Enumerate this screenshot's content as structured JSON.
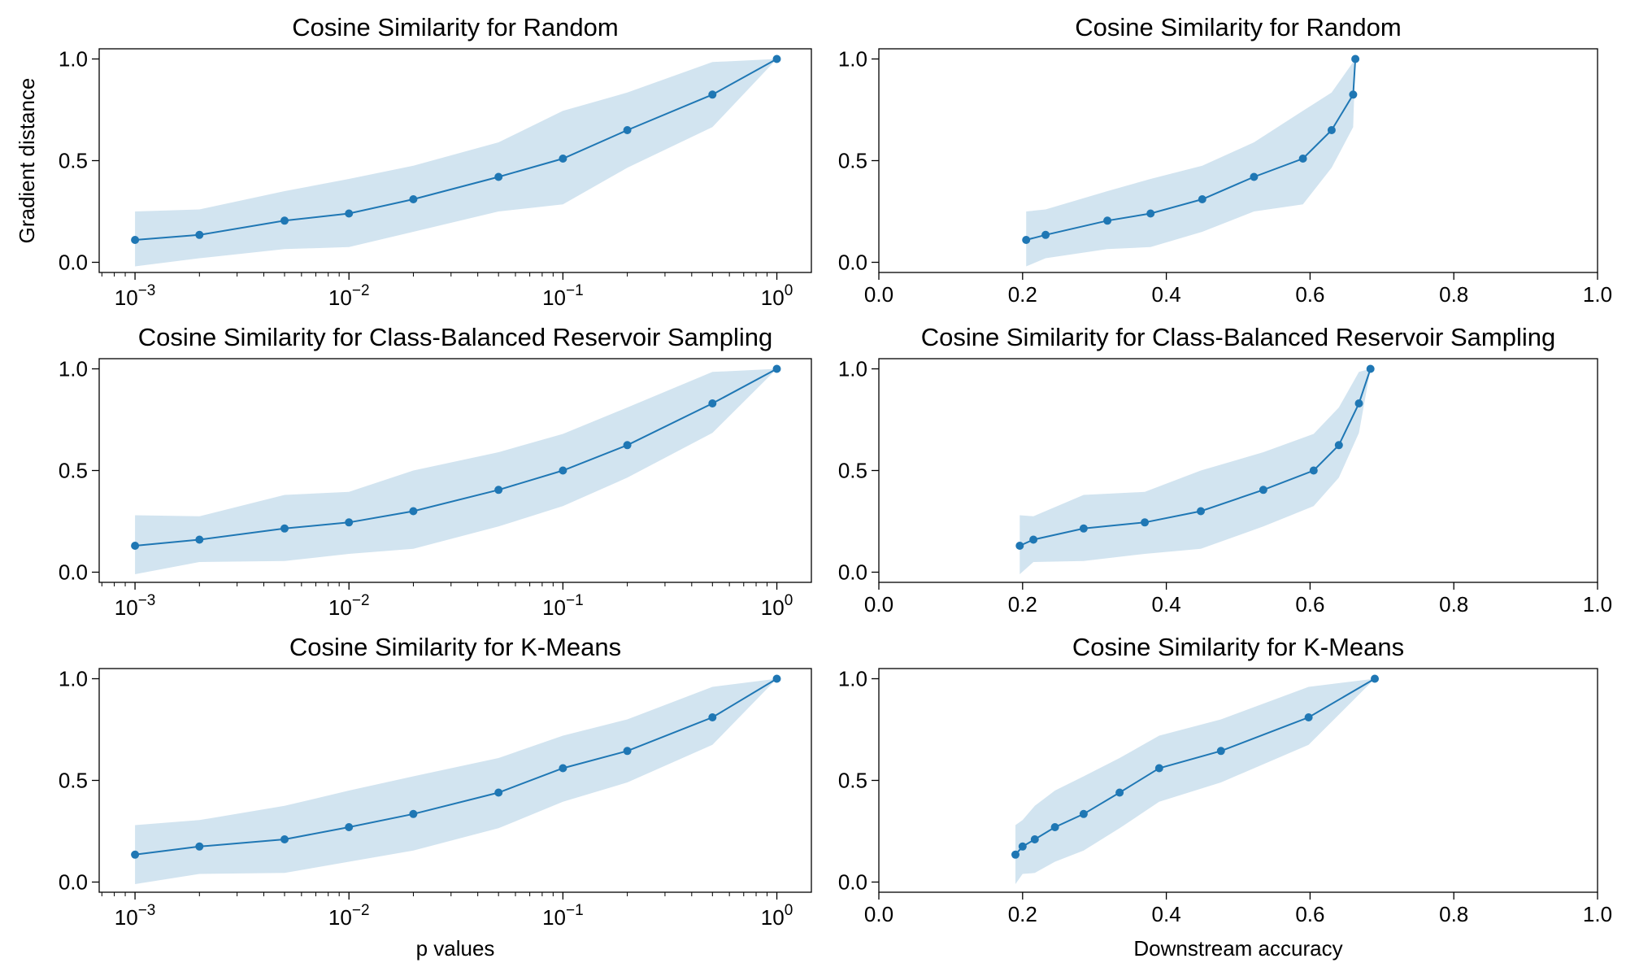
{
  "chart_data": [
    {
      "type": "line",
      "title": "Cosine Similarity for Random",
      "xscale": "log",
      "xlim": [
        0.00068,
        1.45
      ],
      "ylim": [
        -0.05,
        1.05
      ],
      "xticks": [
        0.001,
        0.01,
        0.1,
        1
      ],
      "xtick_labels": [
        [
          "10",
          "−3"
        ],
        [
          "10",
          "−2"
        ],
        [
          "10",
          "−1"
        ],
        [
          "10",
          "0"
        ]
      ],
      "yticks": [
        0.0,
        0.5,
        1.0
      ],
      "ytick_labels": [
        "0.0",
        "0.5",
        "1.0"
      ],
      "xlabel": "",
      "ylabel": "Gradient distance",
      "grid": false,
      "color": "#1f77b4",
      "series": [
        {
          "x": [
            0.001,
            0.002,
            0.005,
            0.01,
            0.02,
            0.05,
            0.1,
            0.2,
            0.5,
            1
          ],
          "y": [
            0.11,
            0.135,
            0.205,
            0.24,
            0.31,
            0.42,
            0.51,
            0.65,
            0.825,
            1.0
          ],
          "lower": [
            -0.02,
            0.02,
            0.065,
            0.075,
            0.15,
            0.25,
            0.285,
            0.465,
            0.665,
            1.0
          ],
          "upper": [
            0.25,
            0.26,
            0.35,
            0.41,
            0.475,
            0.59,
            0.745,
            0.835,
            0.985,
            1.0
          ]
        }
      ]
    },
    {
      "type": "line",
      "title": "Cosine Similarity for Random",
      "xscale": "linear",
      "xlim": [
        0,
        1
      ],
      "ylim": [
        -0.05,
        1.05
      ],
      "xticks": [
        0,
        0.2,
        0.4,
        0.6,
        0.8,
        1.0
      ],
      "xtick_labels": [
        "0.0",
        "0.2",
        "0.4",
        "0.6",
        "0.8",
        "1.0"
      ],
      "yticks": [
        0.0,
        0.5,
        1.0
      ],
      "ytick_labels": [
        "0.0",
        "0.5",
        "1.0"
      ],
      "xlabel": "",
      "ylabel": "",
      "grid": false,
      "color": "#1f77b4",
      "series": [
        {
          "x": [
            0.205,
            0.232,
            0.318,
            0.378,
            0.45,
            0.522,
            0.59,
            0.63,
            0.66,
            0.663
          ],
          "y": [
            0.11,
            0.135,
            0.205,
            0.24,
            0.31,
            0.42,
            0.51,
            0.65,
            0.825,
            1.0
          ],
          "lower": [
            -0.02,
            0.02,
            0.065,
            0.075,
            0.15,
            0.25,
            0.285,
            0.465,
            0.665,
            1.0
          ],
          "upper": [
            0.25,
            0.26,
            0.35,
            0.41,
            0.475,
            0.59,
            0.745,
            0.835,
            0.985,
            1.0
          ]
        }
      ]
    },
    {
      "type": "line",
      "title": "Cosine Similarity for Class-Balanced Reservoir Sampling",
      "xscale": "log",
      "xlim": [
        0.00068,
        1.45
      ],
      "ylim": [
        -0.05,
        1.05
      ],
      "xticks": [
        0.001,
        0.01,
        0.1,
        1
      ],
      "xtick_labels": [
        [
          "10",
          "−3"
        ],
        [
          "10",
          "−2"
        ],
        [
          "10",
          "−1"
        ],
        [
          "10",
          "0"
        ]
      ],
      "yticks": [
        0.0,
        0.5,
        1.0
      ],
      "ytick_labels": [
        "0.0",
        "0.5",
        "1.0"
      ],
      "xlabel": "",
      "ylabel": "",
      "grid": false,
      "color": "#1f77b4",
      "series": [
        {
          "x": [
            0.001,
            0.002,
            0.005,
            0.01,
            0.02,
            0.05,
            0.1,
            0.2,
            0.5,
            1
          ],
          "y": [
            0.13,
            0.16,
            0.215,
            0.245,
            0.3,
            0.405,
            0.5,
            0.625,
            0.83,
            1.0
          ],
          "lower": [
            -0.01,
            0.05,
            0.055,
            0.09,
            0.115,
            0.225,
            0.325,
            0.465,
            0.685,
            1.0
          ],
          "upper": [
            0.28,
            0.275,
            0.38,
            0.395,
            0.5,
            0.59,
            0.68,
            0.81,
            0.985,
            1.0
          ]
        }
      ]
    },
    {
      "type": "line",
      "title": "Cosine Similarity for Class-Balanced Reservoir Sampling",
      "xscale": "linear",
      "xlim": [
        0,
        1
      ],
      "ylim": [
        -0.05,
        1.05
      ],
      "xticks": [
        0,
        0.2,
        0.4,
        0.6,
        0.8,
        1.0
      ],
      "xtick_labels": [
        "0.0",
        "0.2",
        "0.4",
        "0.6",
        "0.8",
        "1.0"
      ],
      "yticks": [
        0.0,
        0.5,
        1.0
      ],
      "ytick_labels": [
        "0.0",
        "0.5",
        "1.0"
      ],
      "xlabel": "",
      "ylabel": "",
      "grid": false,
      "color": "#1f77b4",
      "series": [
        {
          "x": [
            0.196,
            0.215,
            0.285,
            0.37,
            0.448,
            0.535,
            0.605,
            0.64,
            0.668,
            0.684
          ],
          "y": [
            0.13,
            0.16,
            0.215,
            0.245,
            0.3,
            0.405,
            0.5,
            0.625,
            0.83,
            1.0
          ],
          "lower": [
            -0.01,
            0.05,
            0.055,
            0.09,
            0.115,
            0.225,
            0.325,
            0.465,
            0.685,
            1.0
          ],
          "upper": [
            0.28,
            0.275,
            0.38,
            0.395,
            0.5,
            0.59,
            0.68,
            0.81,
            0.985,
            1.0
          ]
        }
      ]
    },
    {
      "type": "line",
      "title": "Cosine Similarity for K-Means",
      "xscale": "log",
      "xlim": [
        0.00068,
        1.45
      ],
      "ylim": [
        -0.05,
        1.05
      ],
      "xticks": [
        0.001,
        0.01,
        0.1,
        1
      ],
      "xtick_labels": [
        [
          "10",
          "−3"
        ],
        [
          "10",
          "−2"
        ],
        [
          "10",
          "−1"
        ],
        [
          "10",
          "0"
        ]
      ],
      "yticks": [
        0.0,
        0.5,
        1.0
      ],
      "ytick_labels": [
        "0.0",
        "0.5",
        "1.0"
      ],
      "xlabel": "p values",
      "ylabel": "",
      "grid": false,
      "color": "#1f77b4",
      "series": [
        {
          "x": [
            0.001,
            0.002,
            0.005,
            0.01,
            0.02,
            0.05,
            0.1,
            0.2,
            0.5,
            1
          ],
          "y": [
            0.135,
            0.175,
            0.21,
            0.27,
            0.335,
            0.44,
            0.56,
            0.645,
            0.81,
            1.0
          ],
          "lower": [
            -0.01,
            0.04,
            0.045,
            0.1,
            0.155,
            0.265,
            0.395,
            0.49,
            0.675,
            1.0
          ],
          "upper": [
            0.28,
            0.305,
            0.375,
            0.45,
            0.52,
            0.61,
            0.72,
            0.8,
            0.96,
            1.0
          ]
        }
      ]
    },
    {
      "type": "line",
      "title": "Cosine Similarity for K-Means",
      "xscale": "linear",
      "xlim": [
        0,
        1
      ],
      "ylim": [
        -0.05,
        1.05
      ],
      "xticks": [
        0,
        0.2,
        0.4,
        0.6,
        0.8,
        1.0
      ],
      "xtick_labels": [
        "0.0",
        "0.2",
        "0.4",
        "0.6",
        "0.8",
        "1.0"
      ],
      "yticks": [
        0.0,
        0.5,
        1.0
      ],
      "ytick_labels": [
        "0.0",
        "0.5",
        "1.0"
      ],
      "xlabel": "Downstream accuracy",
      "ylabel": "",
      "grid": false,
      "color": "#1f77b4",
      "series": [
        {
          "x": [
            0.19,
            0.2,
            0.217,
            0.245,
            0.285,
            0.335,
            0.39,
            0.476,
            0.598,
            0.69
          ],
          "y": [
            0.135,
            0.175,
            0.21,
            0.27,
            0.335,
            0.44,
            0.56,
            0.645,
            0.81,
            1.0
          ],
          "lower": [
            -0.01,
            0.04,
            0.045,
            0.1,
            0.155,
            0.265,
            0.395,
            0.49,
            0.675,
            1.0
          ],
          "upper": [
            0.28,
            0.305,
            0.375,
            0.45,
            0.52,
            0.61,
            0.72,
            0.8,
            0.96,
            1.0
          ]
        }
      ]
    }
  ]
}
